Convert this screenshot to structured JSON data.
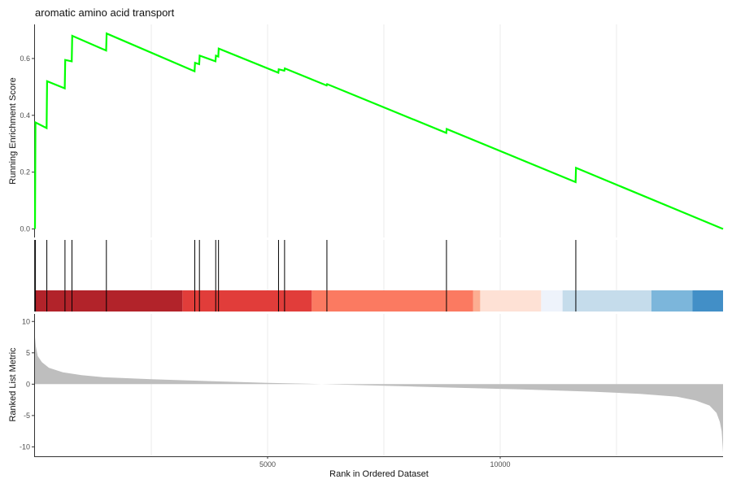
{
  "chart_data": {
    "title": "aromatic amino acid transport",
    "total_genes": 14790,
    "enrichment_panel": {
      "type": "line",
      "ylabel": "Running Enrichment Score",
      "yticks": [
        "0.0",
        "0.2",
        "0.4",
        "0.6"
      ],
      "ytick_values": [
        0,
        0.2,
        0.4,
        0.6
      ],
      "ylim": [
        -0.03,
        0.72
      ],
      "line_color": "#00ff00",
      "points": [
        [
          0,
          0
        ],
        [
          10,
          0.375
        ],
        [
          250,
          0.355
        ],
        [
          260,
          0.52
        ],
        [
          640,
          0.495
        ],
        [
          650,
          0.595
        ],
        [
          790,
          0.59
        ],
        [
          800,
          0.68
        ],
        [
          1530,
          0.628
        ],
        [
          1540,
          0.688
        ],
        [
          3430,
          0.555
        ],
        [
          3440,
          0.585
        ],
        [
          3530,
          0.58
        ],
        [
          3540,
          0.61
        ],
        [
          3880,
          0.59
        ],
        [
          3890,
          0.61
        ],
        [
          3940,
          0.607
        ],
        [
          3950,
          0.635
        ],
        [
          5230,
          0.55
        ],
        [
          5240,
          0.562
        ],
        [
          5360,
          0.557
        ],
        [
          5370,
          0.565
        ],
        [
          6270,
          0.505
        ],
        [
          6280,
          0.51
        ],
        [
          8840,
          0.338
        ],
        [
          8850,
          0.352
        ],
        [
          11620,
          0.165
        ],
        [
          11630,
          0.215
        ],
        [
          14790,
          0
        ]
      ]
    },
    "hits_panel": {
      "type": "scatter",
      "hit_positions": [
        10,
        255,
        645,
        795,
        1535,
        3435,
        3535,
        3885,
        3945,
        5235,
        5365,
        6275,
        8845,
        11625
      ],
      "gradient_bands": [
        {
          "start": 0,
          "end": 3170,
          "color": "#b2232a"
        },
        {
          "start": 3170,
          "end": 5950,
          "color": "#e13d3a"
        },
        {
          "start": 5950,
          "end": 9420,
          "color": "#fb7a61"
        },
        {
          "start": 9420,
          "end": 9570,
          "color": "#fcae92"
        },
        {
          "start": 9570,
          "end": 10880,
          "color": "#fee1d5"
        },
        {
          "start": 10880,
          "end": 11340,
          "color": "#eef3fb"
        },
        {
          "start": 11340,
          "end": 13250,
          "color": "#c5dceb"
        },
        {
          "start": 13250,
          "end": 14130,
          "color": "#7cb6db"
        },
        {
          "start": 14130,
          "end": 14790,
          "color": "#428fc7"
        }
      ]
    },
    "metric_panel": {
      "type": "area",
      "ylabel": "Ranked List Metric",
      "xlabel": "Rank in Ordered Dataset",
      "yticks": [
        "10",
        "5",
        "0",
        "-5",
        "-10"
      ],
      "ytick_values": [
        10,
        5,
        0,
        -5,
        -10
      ],
      "ylim": [
        -11.5,
        11.2
      ],
      "xticks": [
        "5000",
        "10000"
      ],
      "xtick_values": [
        5000,
        10000
      ],
      "fill_color": "#bebebe",
      "curve": [
        [
          0,
          7.5
        ],
        [
          20,
          6
        ],
        [
          60,
          4.5
        ],
        [
          150,
          3.5
        ],
        [
          300,
          2.6
        ],
        [
          600,
          1.9
        ],
        [
          1000,
          1.45
        ],
        [
          1500,
          1.1
        ],
        [
          2500,
          0.8
        ],
        [
          3500,
          0.55
        ],
        [
          5000,
          0.2
        ],
        [
          6000,
          0.05
        ],
        [
          7000,
          -0.15
        ],
        [
          8000,
          -0.35
        ],
        [
          9000,
          -0.55
        ],
        [
          10000,
          -0.75
        ],
        [
          11000,
          -0.95
        ],
        [
          12000,
          -1.2
        ],
        [
          13000,
          -1.55
        ],
        [
          13800,
          -2
        ],
        [
          14200,
          -2.6
        ],
        [
          14500,
          -3.4
        ],
        [
          14650,
          -4.6
        ],
        [
          14720,
          -6
        ],
        [
          14760,
          -7.5
        ],
        [
          14790,
          -10.9
        ]
      ]
    }
  }
}
